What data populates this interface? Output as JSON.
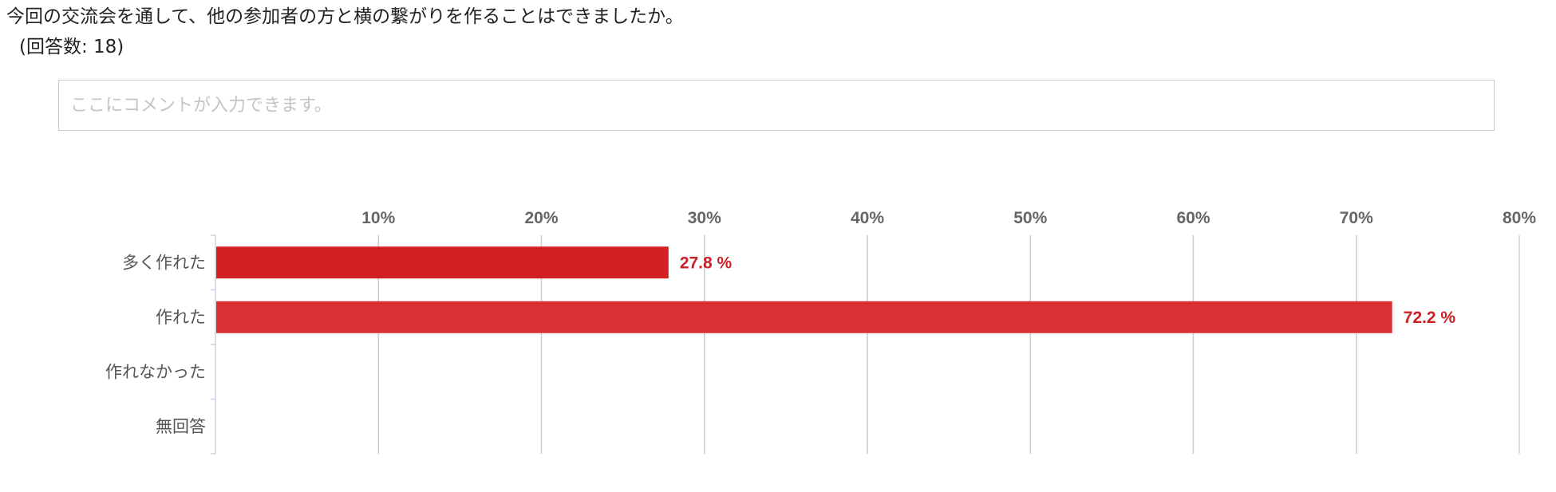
{
  "question": {
    "text": "今回の交流会を通して、他の参加者の方と横の繋がりを作ることはできましたか。",
    "response_count": "(回答数: 18)"
  },
  "comment": {
    "placeholder": "ここにコメントが入力できます。",
    "value": ""
  },
  "chart_data": {
    "type": "bar",
    "orientation": "horizontal",
    "categories": [
      "多く作れた",
      "作れた",
      "作れなかった",
      "無回答"
    ],
    "values": [
      27.8,
      72.2,
      0,
      0
    ],
    "value_labels": [
      "27.8 %",
      "72.2 %",
      "",
      ""
    ],
    "xlim": [
      0,
      80
    ],
    "xticks": [
      10,
      20,
      30,
      40,
      50,
      60,
      70,
      80
    ],
    "xtick_labels": [
      "10%",
      "20%",
      "30%",
      "40%",
      "50%",
      "60%",
      "70%",
      "80%"
    ],
    "axis_position": "top",
    "grid": true,
    "colors": [
      "#d32022",
      "#d93035"
    ],
    "value_label_color": "#cc2027",
    "grid_color": "#cccccc",
    "tick_label_color": "#666666"
  }
}
